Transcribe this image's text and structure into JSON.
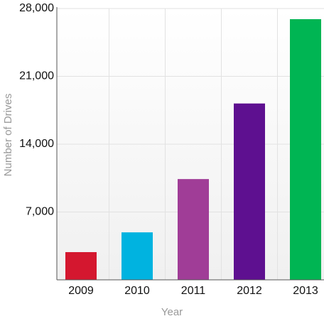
{
  "chart_data": {
    "type": "bar",
    "x_label": "Year",
    "y_label": "Number of Drives",
    "categories": [
      "2009",
      "2010",
      "2011",
      "2012",
      "2013"
    ],
    "values": [
      2860,
      4900,
      10400,
      18200,
      26900
    ],
    "colors": [
      "#d4172f",
      "#00b3e0",
      "#a03d97",
      "#5e1090",
      "#00b553"
    ],
    "ylim": [
      0,
      28000
    ],
    "yticks": [
      {
        "value": 7000,
        "label": "7,000"
      },
      {
        "value": 14000,
        "label": "14,000"
      },
      {
        "value": 21000,
        "label": "21,000"
      },
      {
        "value": 28000,
        "label": "28,000"
      }
    ],
    "grid": true
  }
}
